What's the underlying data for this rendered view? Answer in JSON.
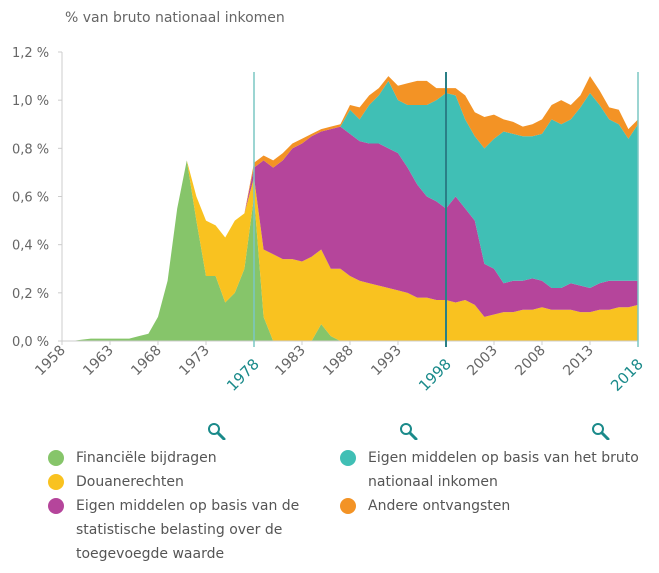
{
  "chart_data": {
    "type": "stacked_area",
    "y_label": "% van bruto nationaal inkomen",
    "x": [
      1958,
      1959,
      1960,
      1961,
      1962,
      1963,
      1964,
      1965,
      1966,
      1967,
      1968,
      1969,
      1970,
      1971,
      1972,
      1973,
      1974,
      1975,
      1976,
      1977,
      1978,
      1979,
      1980,
      1981,
      1982,
      1983,
      1984,
      1985,
      1986,
      1987,
      1988,
      1989,
      1990,
      1991,
      1992,
      1993,
      1994,
      1995,
      1996,
      1997,
      1998,
      1999,
      2000,
      2001,
      2002,
      2003,
      2004,
      2005,
      2006,
      2007,
      2008,
      2009,
      2010,
      2011,
      2012,
      2013,
      2014,
      2015,
      2016,
      2017,
      2018
    ],
    "series": [
      {
        "name": "Financiële bijdragen",
        "color": "#86c56a",
        "values": [
          0,
          0,
          0.005,
          0.01,
          0.01,
          0.01,
          0.01,
          0.01,
          0.02,
          0.03,
          0.1,
          0.25,
          0.55,
          0.75,
          0.5,
          0.27,
          0.27,
          0.16,
          0.2,
          0.3,
          0.6,
          0.1,
          0,
          0,
          0,
          0,
          0,
          0.07,
          0.02,
          0,
          0,
          0,
          0,
          0,
          0,
          0,
          0,
          0,
          0,
          0,
          0,
          0,
          0,
          0,
          0,
          0,
          0,
          0,
          0,
          0,
          0,
          0,
          0,
          0,
          0,
          0,
          0,
          0,
          0,
          0,
          0
        ]
      },
      {
        "name": "Douanerechten",
        "color": "#f9c220",
        "values": [
          0,
          0,
          0,
          0,
          0,
          0,
          0,
          0,
          0,
          0,
          0,
          0,
          0,
          0,
          0.1,
          0.23,
          0.21,
          0.27,
          0.3,
          0.23,
          0.08,
          0.28,
          0.36,
          0.34,
          0.34,
          0.33,
          0.35,
          0.31,
          0.28,
          0.3,
          0.27,
          0.25,
          0.24,
          0.23,
          0.22,
          0.21,
          0.2,
          0.18,
          0.18,
          0.17,
          0.17,
          0.16,
          0.17,
          0.15,
          0.1,
          0.11,
          0.12,
          0.12,
          0.13,
          0.13,
          0.14,
          0.13,
          0.13,
          0.13,
          0.12,
          0.12,
          0.13,
          0.13,
          0.14,
          0.14,
          0.15
        ]
      },
      {
        "name": "Eigen middelen op basis van de statistische belasting over de toegevoegde waarde",
        "color": "#b5459b",
        "values": [
          0,
          0,
          0,
          0,
          0,
          0,
          0,
          0,
          0,
          0,
          0,
          0,
          0,
          0,
          0,
          0,
          0,
          0,
          0,
          0,
          0.04,
          0.37,
          0.36,
          0.41,
          0.46,
          0.49,
          0.5,
          0.49,
          0.58,
          0.59,
          0.59,
          0.58,
          0.58,
          0.59,
          0.58,
          0.57,
          0.52,
          0.47,
          0.42,
          0.41,
          0.38,
          0.44,
          0.38,
          0.35,
          0.22,
          0.19,
          0.12,
          0.13,
          0.12,
          0.13,
          0.11,
          0.09,
          0.09,
          0.11,
          0.11,
          0.1,
          0.11,
          0.12,
          0.11,
          0.11,
          0.1
        ]
      },
      {
        "name": "Eigen middelen op basis van het bruto nationaal inkomen",
        "color": "#40bfb5",
        "values": [
          0,
          0,
          0,
          0,
          0,
          0,
          0,
          0,
          0,
          0,
          0,
          0,
          0,
          0,
          0,
          0,
          0,
          0,
          0,
          0,
          0,
          0,
          0,
          0,
          0,
          0,
          0,
          0,
          0,
          0,
          0.1,
          0.09,
          0.16,
          0.2,
          0.28,
          0.22,
          0.26,
          0.33,
          0.38,
          0.42,
          0.48,
          0.42,
          0.37,
          0.35,
          0.48,
          0.54,
          0.63,
          0.61,
          0.6,
          0.59,
          0.61,
          0.7,
          0.68,
          0.68,
          0.74,
          0.81,
          0.74,
          0.67,
          0.65,
          0.59,
          0.65
        ]
      },
      {
        "name": "Andere ontvangsten",
        "color": "#f39325",
        "values": [
          0,
          0,
          0,
          0,
          0,
          0,
          0,
          0,
          0,
          0,
          0,
          0,
          0,
          0,
          0,
          0,
          0,
          0,
          0,
          0,
          0.02,
          0.02,
          0.03,
          0.03,
          0.02,
          0.02,
          0.01,
          0.01,
          0.01,
          0.01,
          0.02,
          0.05,
          0.04,
          0.03,
          0.02,
          0.06,
          0.09,
          0.1,
          0.1,
          0.05,
          0.02,
          0.03,
          0.1,
          0.1,
          0.13,
          0.1,
          0.05,
          0.05,
          0.04,
          0.05,
          0.06,
          0.06,
          0.1,
          0.06,
          0.05,
          0.07,
          0.06,
          0.05,
          0.06,
          0.04,
          0.02
        ]
      }
    ],
    "xlim": [
      1958,
      2018
    ],
    "xticks": [
      1958,
      1963,
      1968,
      1973,
      1983,
      1988,
      1993,
      2003,
      2008,
      2013
    ],
    "highlights": [
      1978,
      1998,
      2018
    ],
    "highlight_color": "#1a8a8a",
    "ylim": [
      0,
      1.2
    ],
    "yticks": [
      {
        "value": 0,
        "label": "0,0 %"
      },
      {
        "value": 0.2,
        "label": "0,2 %"
      },
      {
        "value": 0.4,
        "label": "0,4 %"
      },
      {
        "value": 0.6,
        "label": "0,6 %"
      },
      {
        "value": 0.8,
        "label": "0,8 %"
      },
      {
        "value": 1.0,
        "label": "1,0 %"
      },
      {
        "value": 1.2,
        "label": "1,2 %"
      }
    ],
    "grid": false
  }
}
